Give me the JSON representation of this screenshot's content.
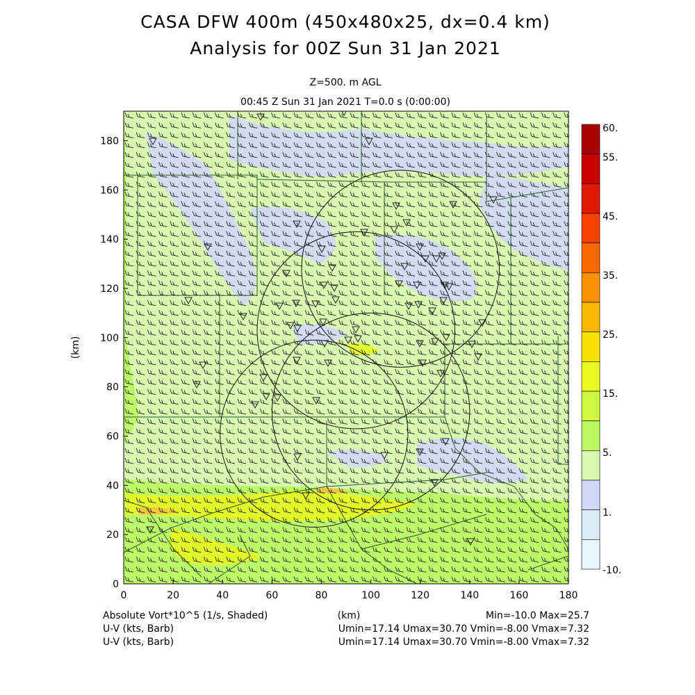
{
  "title_line1": "CASA DFW 400m (450x480x25, dx=0.4 km)",
  "title_line2": "Analysis for 00Z Sun 31 Jan 2021",
  "level_label": "Z=500. m AGL",
  "time_label": "00:45 Z Sun 31 Jan 2021    T=0.0 s (0:00:00)",
  "footer": {
    "field1_label": "Absolute Vort*10^5 (1/s, Shaded)",
    "xunit_label": "(km)",
    "field1_stats": "Min=-10.0 Max=25.7",
    "field2_label": "U-V (kts, Barb)",
    "field2_stats": "Umin=17.14 Umax=30.70 Vmin=-8.00 Vmax=7.32",
    "field3_label": "U-V (kts, Barb)",
    "field3_stats": "Umin=17.14 Umax=30.70 Vmin=-8.00 Vmax=7.32"
  },
  "chart_data": {
    "type": "heatmap",
    "xlabel": "(km)",
    "ylabel": "(km)",
    "xlim": [
      0,
      180
    ],
    "ylim": [
      0,
      192
    ],
    "x_ticks": [
      0,
      20,
      40,
      60,
      80,
      100,
      120,
      140,
      160,
      180
    ],
    "y_ticks": [
      0,
      20,
      40,
      60,
      80,
      100,
      120,
      140,
      160,
      180
    ],
    "colorbar": {
      "labels": [
        "60.",
        "55.",
        "45.",
        "35.",
        "25.",
        "15.",
        "5.",
        "1.",
        "-10."
      ],
      "colors": [
        "#a80000",
        "#c80000",
        "#e01800",
        "#f84000",
        "#f86800",
        "#f89000",
        "#f8b800",
        "#f8e000",
        "#e8f820",
        "#d0f840",
        "#b8f860",
        "#d8f8b0",
        "#d0d8f8",
        "#d8ecf8",
        "#e8f8fc"
      ]
    },
    "radar_rings": [
      {
        "center": [
          77,
          61
        ],
        "radius_km": 38
      },
      {
        "center": [
          100,
          70
        ],
        "radius_km": 40
      },
      {
        "center": [
          94,
          103
        ],
        "radius_km": 40
      },
      {
        "center": [
          112,
          128
        ],
        "radius_km": 40
      }
    ],
    "wind_barbs": {
      "u_min": 17.14,
      "u_max": 30.7,
      "v_min": -8.0,
      "v_max": 7.32,
      "units": "kts"
    },
    "vorticity": {
      "min": -10.0,
      "max": 25.7
    },
    "background_colors": {
      "low": "#d0d8f8",
      "mid": "#d8f8b0",
      "high": "#b8f860",
      "peak": "#e8f820"
    }
  }
}
